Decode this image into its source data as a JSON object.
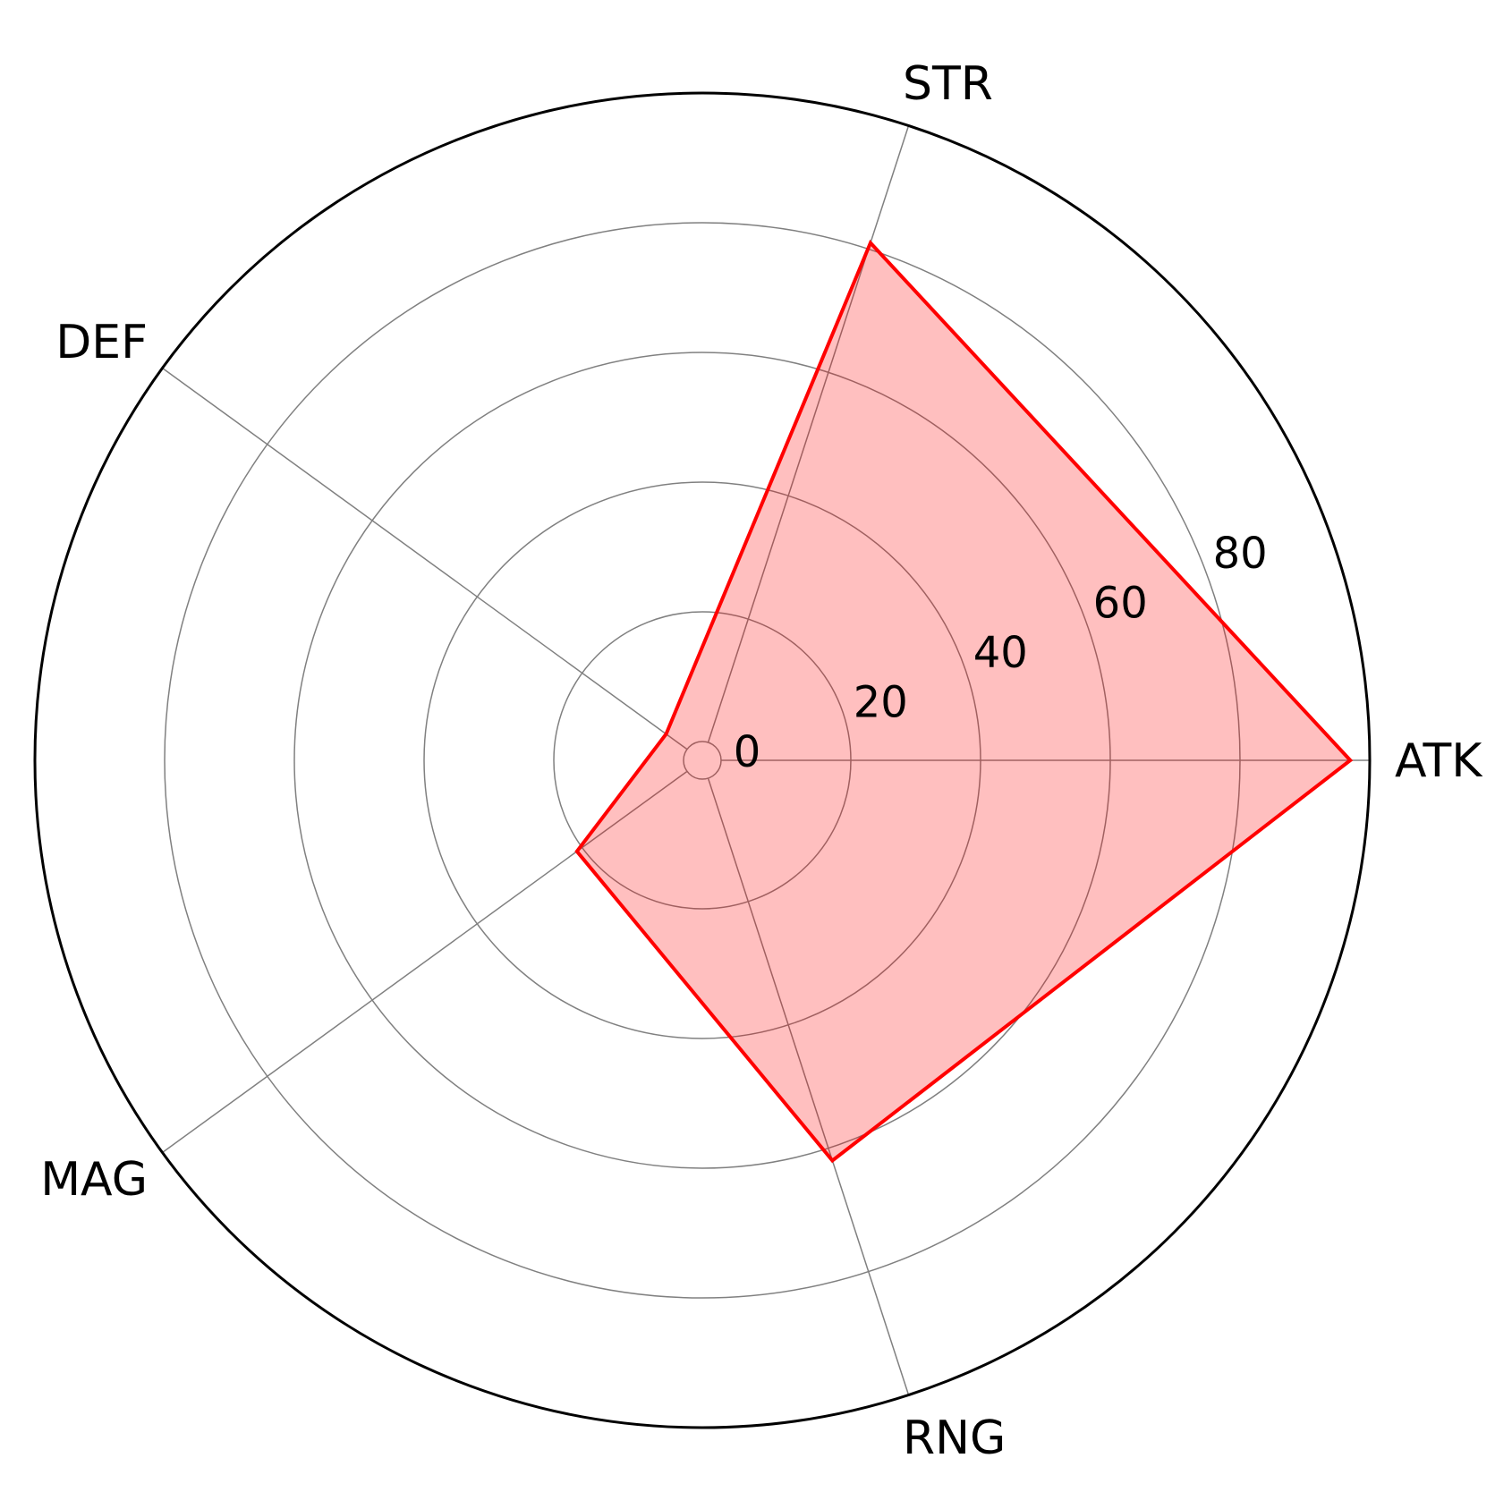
{
  "chart_data": {
    "type": "radar",
    "title": "",
    "categories": [
      "ATK",
      "STR",
      "DEF",
      "MAG",
      "RNG"
    ],
    "series": [
      {
        "values": [
          97,
          81,
          4,
          21,
          62
        ],
        "color": "#ff0000",
        "fill": "#ff0000",
        "fill_opacity": 0.25
      }
    ],
    "rlim": [
      0,
      100
    ],
    "r_ticks": [
      0,
      20,
      40,
      60,
      80
    ],
    "r_tick_labels": [
      "0",
      "20",
      "40",
      "60",
      "80"
    ],
    "grid": true,
    "grid_color": "#808080",
    "frame_color": "#000000"
  }
}
